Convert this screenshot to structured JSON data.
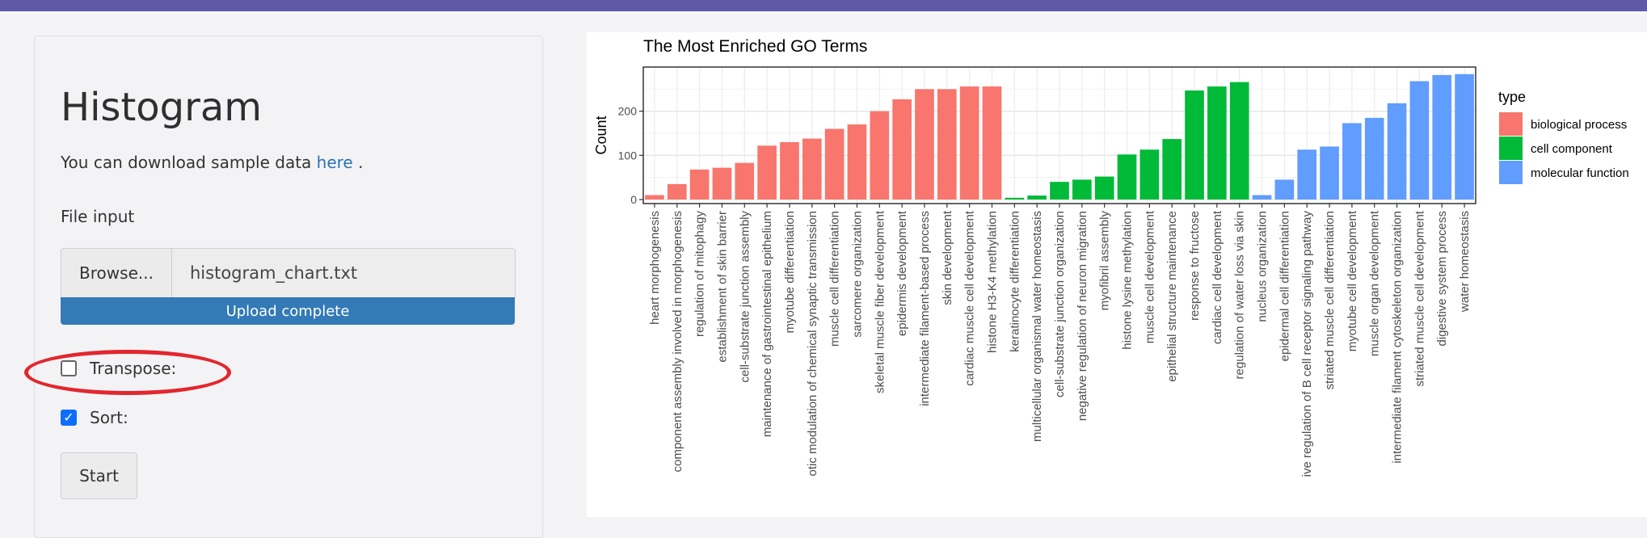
{
  "panel": {
    "title": "Histogram",
    "download_prefix": "You can download sample data ",
    "download_link": "here",
    "download_suffix": " .",
    "file_input_label": "File input",
    "browse_label": "Browse...",
    "file_name": "histogram_chart.txt",
    "upload_status": "Upload complete",
    "upload_progress": 1.0,
    "transpose_label": "Transpose:",
    "transpose_checked": false,
    "sort_label": "Sort:",
    "sort_checked": true,
    "start_label": "Start"
  },
  "colors": {
    "topbar": "#5f5aa6",
    "link": "#2a72b5",
    "progress": "#337ab7",
    "highlight": "#e3262e",
    "biological_process": "#f8766d",
    "cell_component": "#00ba38",
    "molecular_function": "#619cff"
  },
  "chart_data": {
    "type": "bar",
    "title": "The Most Enriched GO Terms",
    "xlabel": "",
    "ylabel": "Count",
    "ylim": [
      0,
      300
    ],
    "yticks": [
      0,
      100,
      200
    ],
    "grid": true,
    "legend": {
      "title": "type",
      "position": "right",
      "entries": [
        "biological process",
        "cell component",
        "molecular function"
      ]
    },
    "categories": [
      "heart morphogenesis",
      "component assembly involved in morphogenesis",
      "regulation of mitophagy",
      "establishment of skin barrier",
      "cell-substrate junction assembly",
      "maintenance of gastrointestinal epithelium",
      "myotube differentiation",
      "otic modulation of chemical synaptic transmission",
      "muscle cell differentiation",
      "sarcomere organization",
      "skeletal muscle fiber development",
      "epidermis development",
      "intermediate filament-based process",
      "skin development",
      "cardiac muscle cell development",
      "histone H3-K4 methylation",
      "keratinocyte differentiation",
      "multicellular organismal water homeostasis",
      "cell-substrate junction organization",
      "negative regulation of neuron migration",
      "myofibril assembly",
      "histone lysine methylation",
      "muscle cell development",
      "epithelial structure maintenance",
      "response to fructose",
      "cardiac cell development",
      "regulation of water loss via skin",
      "nucleus organization",
      "epidermal cell differentiation",
      "ive regulation of B cell receptor signaling pathway",
      "striated muscle cell differentiation",
      "myotube cell development",
      "muscle organ development",
      "intermediate filament cytoskeleton organization",
      "striated muscle cell development",
      "digestive system process",
      "water homeostasis"
    ],
    "values": [
      10,
      35,
      68,
      72,
      83,
      122,
      130,
      138,
      160,
      170,
      200,
      227,
      250,
      250,
      256,
      256,
      4,
      9,
      40,
      45,
      52,
      102,
      113,
      137,
      247,
      256,
      266,
      10,
      45,
      113,
      120,
      173,
      185,
      218,
      268,
      282,
      284
    ],
    "types": [
      "biological process",
      "biological process",
      "biological process",
      "biological process",
      "biological process",
      "biological process",
      "biological process",
      "biological process",
      "biological process",
      "biological process",
      "biological process",
      "biological process",
      "biological process",
      "biological process",
      "biological process",
      "biological process",
      "cell component",
      "cell component",
      "cell component",
      "cell component",
      "cell component",
      "cell component",
      "cell component",
      "cell component",
      "cell component",
      "cell component",
      "cell component",
      "molecular function",
      "molecular function",
      "molecular function",
      "molecular function",
      "molecular function",
      "molecular function",
      "molecular function",
      "molecular function",
      "molecular function",
      "molecular function"
    ]
  }
}
